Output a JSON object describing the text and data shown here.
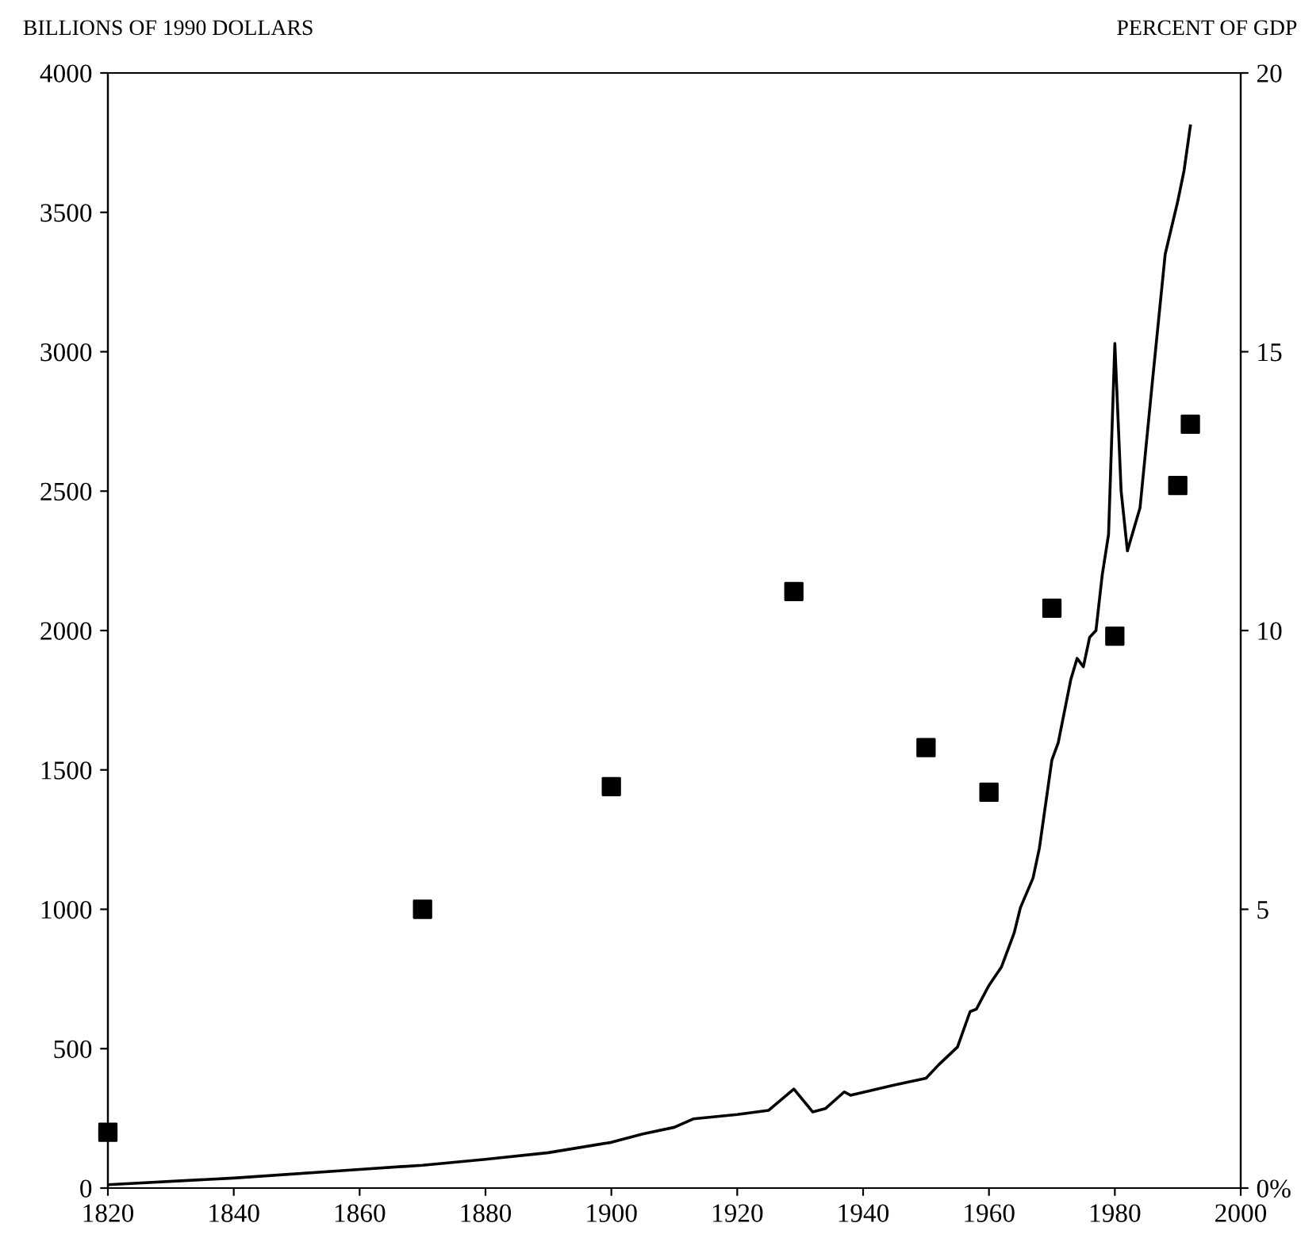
{
  "chart_data": {
    "type": "line",
    "ylabel": "BILLIONS OF 1990 DOLLARS",
    "y2label": "PERCENT OF GDP",
    "xlim": [
      1820,
      2000
    ],
    "xticks": [
      1820,
      1840,
      1860,
      1880,
      1900,
      1920,
      1940,
      1960,
      1980,
      2000
    ],
    "ylim": [
      0,
      4000
    ],
    "yticks": [
      0,
      500,
      1000,
      1500,
      2000,
      2500,
      3000,
      3500,
      4000
    ],
    "y2lim": [
      0,
      20
    ],
    "y2ticks": [
      {
        "value": 0,
        "label": "0%"
      },
      5,
      10,
      15,
      20
    ],
    "grid": false,
    "legend": false,
    "series": [
      {
        "color": "#000000",
        "line_style": "solid",
        "marker": "none",
        "x": [
          1820,
          1840,
          1860,
          1870,
          1880,
          1890,
          1900,
          1905,
          1910,
          1913,
          1920,
          1925,
          1929,
          1932,
          1934,
          1937,
          1938,
          1945,
          1950,
          1952,
          1955,
          1957,
          1958,
          1960,
          1962,
          1964,
          1965,
          1967,
          1968,
          1970,
          1971,
          1973,
          1974,
          1975,
          1976,
          1977,
          1978,
          1979,
          1980,
          1981,
          1982,
          1984,
          1986,
          1988,
          1990,
          1991,
          1992
        ],
        "values": [
          12,
          36,
          67,
          82,
          103,
          127,
          164,
          194,
          218,
          248,
          264,
          279,
          355,
          273,
          285,
          345,
          333,
          370,
          394,
          442,
          506,
          633,
          642,
          727,
          794,
          915,
          1006,
          1112,
          1218,
          1536,
          1597,
          1824,
          1900,
          1870,
          1976,
          2000,
          2200,
          2344,
          3030,
          2500,
          2286,
          2440,
          2900,
          3350,
          3540,
          3650,
          3810
        ]
      },
      {
        "type": "scatter",
        "axis": "y2",
        "color": "#000000",
        "marker": "square",
        "x": [
          1820,
          1870,
          1900,
          1929,
          1950,
          1960,
          1970,
          1980,
          1990,
          1992
        ],
        "values": [
          1.0,
          5.0,
          7.2,
          10.7,
          7.9,
          7.1,
          10.4,
          9.9,
          12.6,
          13.7
        ]
      }
    ]
  }
}
